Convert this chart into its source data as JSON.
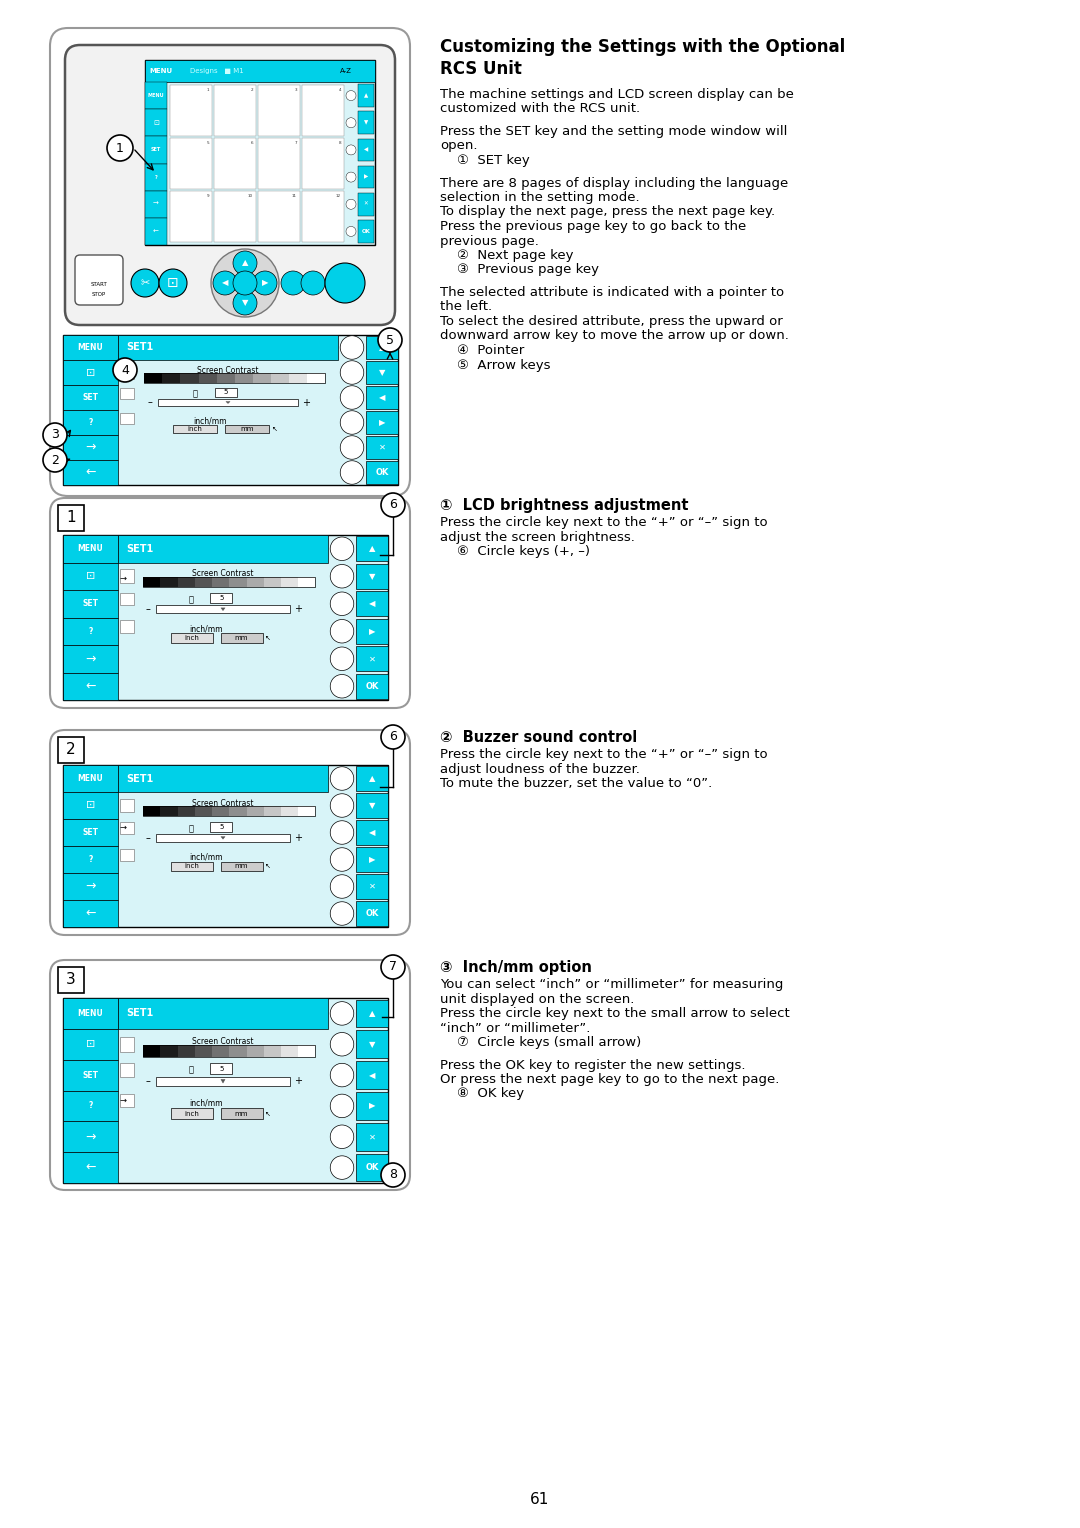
{
  "bg_color": "#ffffff",
  "page_number": "61",
  "cyan": "#00d0e8",
  "panel_ec": "#aaaaaa",
  "text_sections": {
    "title_line1": "Customizing the Settings with the Optional",
    "title_line2": "RCS Unit",
    "s1": [
      "The machine settings and LCD screen display can be",
      "customized with the RCS unit.",
      "",
      "Press the SET key and the setting mode window will",
      "open.",
      "    ①  SET key",
      "",
      "There are 8 pages of display including the language",
      "selection in the setting mode.",
      "To display the next page, press the next page key.",
      "Press the previous page key to go back to the",
      "previous page.",
      "    ②  Next page key",
      "    ③  Previous page key",
      "",
      "The selected attribute is indicated with a pointer to",
      "the left.",
      "To select the desired attribute, press the upward or",
      "downward arrow key to move the arrow up or down.",
      "    ④  Pointer",
      "    ⑤  Arrow keys"
    ],
    "s2_head": "①  LCD brightness adjustment",
    "s2": [
      "Press the circle key next to the “+” or “–” sign to",
      "adjust the screen brightness.",
      "    ⑥  Circle keys (+, –)"
    ],
    "s3_head": "②  Buzzer sound control",
    "s3": [
      "Press the circle key next to the “+” or “–” sign to",
      "adjust loudness of the buzzer.",
      "To mute the buzzer, set the value to “0”."
    ],
    "s4_head": "③  Inch/mm option",
    "s4": [
      "You can select “inch” or “millimeter” for measuring",
      "unit displayed on the screen.",
      "Press the circle key next to the small arrow to select",
      "“inch” or “millimeter”.",
      "    ⑦  Circle keys (small arrow)",
      "",
      "Press the OK key to register the new settings.",
      "Or press the next page key to go to the next page.",
      "    ⑧  OK key"
    ]
  }
}
